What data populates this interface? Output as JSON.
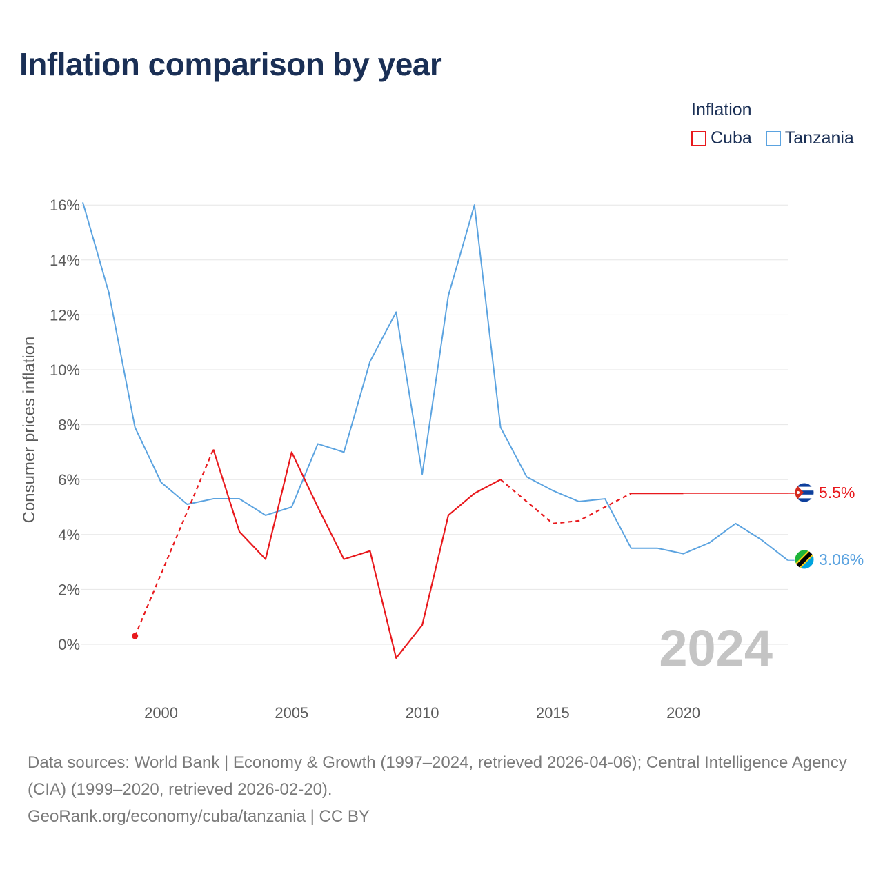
{
  "title": "Inflation comparison by year",
  "legend": {
    "title": "Inflation",
    "items": [
      {
        "label": "Cuba",
        "color": "#e8191d"
      },
      {
        "label": "Tanzania",
        "color": "#5ba3e0"
      }
    ]
  },
  "year_label": "2024",
  "footer": {
    "sources": "Data sources: World Bank | Economy & Growth (1997–2024, retrieved 2026-04-06); Central Intelligence Agency (CIA) (1999–2020, retrieved 2026-02-20).",
    "link": "GeoRank.org/economy/cuba/tanzania | CC BY"
  },
  "flags": {
    "cuba": "cuba-flag-icon",
    "tanzania": "tanzania-flag-icon"
  },
  "chart_data": {
    "type": "line",
    "title": "Inflation comparison by year",
    "xlabel": "",
    "ylabel": "Consumer prices inflation",
    "xlim": [
      1997,
      2024
    ],
    "ylim": [
      -2,
      17
    ],
    "x_ticks": [
      2000,
      2005,
      2010,
      2015,
      2020
    ],
    "x_tick_labels": [
      "2000",
      "2005",
      "2010",
      "2015",
      "2020"
    ],
    "y_ticks": [
      0,
      2,
      4,
      6,
      8,
      10,
      12,
      14,
      16
    ],
    "y_tick_labels": [
      "0%",
      "2%",
      "4%",
      "6%",
      "8%",
      "10%",
      "12%",
      "14%",
      "16%"
    ],
    "grid": true,
    "legend_position": "top-right",
    "series": [
      {
        "name": "Cuba",
        "color": "#e8191d",
        "end_label": "5.5%",
        "points": [
          [
            1999,
            0.3
          ],
          [
            2002,
            7.1
          ],
          [
            2003,
            4.1
          ],
          [
            2004,
            3.1
          ],
          [
            2005,
            7.0
          ],
          [
            2006,
            5.0
          ],
          [
            2007,
            3.1
          ],
          [
            2008,
            3.4
          ],
          [
            2009,
            -0.5
          ],
          [
            2010,
            0.7
          ],
          [
            2011,
            4.7
          ],
          [
            2012,
            5.5
          ],
          [
            2013,
            6.0
          ],
          [
            2015,
            4.4
          ],
          [
            2016,
            4.5
          ],
          [
            2018,
            5.5
          ],
          [
            2019,
            5.5
          ],
          [
            2020,
            5.5
          ],
          [
            2024,
            5.5
          ]
        ],
        "segments": [
          {
            "from": 1999,
            "to": 2002,
            "style": "dashed"
          },
          {
            "from": 2002,
            "to": 2013,
            "style": "solid"
          },
          {
            "from": 2013,
            "to": 2018,
            "style": "dashed"
          },
          {
            "from": 2018,
            "to": 2020,
            "style": "solid"
          },
          {
            "from": 2020,
            "to": 2024,
            "style": "thin"
          }
        ]
      },
      {
        "name": "Tanzania",
        "color": "#5ba3e0",
        "end_label": "3.06%",
        "points": [
          [
            1997,
            16.1
          ],
          [
            1998,
            12.8
          ],
          [
            1999,
            7.9
          ],
          [
            2000,
            5.9
          ],
          [
            2001,
            5.1
          ],
          [
            2002,
            5.3
          ],
          [
            2003,
            5.3
          ],
          [
            2004,
            4.7
          ],
          [
            2005,
            5.0
          ],
          [
            2006,
            7.3
          ],
          [
            2007,
            7.0
          ],
          [
            2008,
            10.3
          ],
          [
            2009,
            12.1
          ],
          [
            2010,
            6.2
          ],
          [
            2011,
            12.7
          ],
          [
            2012,
            16.0
          ],
          [
            2013,
            7.9
          ],
          [
            2014,
            6.1
          ],
          [
            2015,
            5.6
          ],
          [
            2016,
            5.2
          ],
          [
            2017,
            5.3
          ],
          [
            2018,
            3.5
          ],
          [
            2019,
            3.5
          ],
          [
            2020,
            3.3
          ],
          [
            2021,
            3.7
          ],
          [
            2022,
            4.4
          ],
          [
            2023,
            3.8
          ],
          [
            2024,
            3.06
          ]
        ]
      }
    ]
  }
}
